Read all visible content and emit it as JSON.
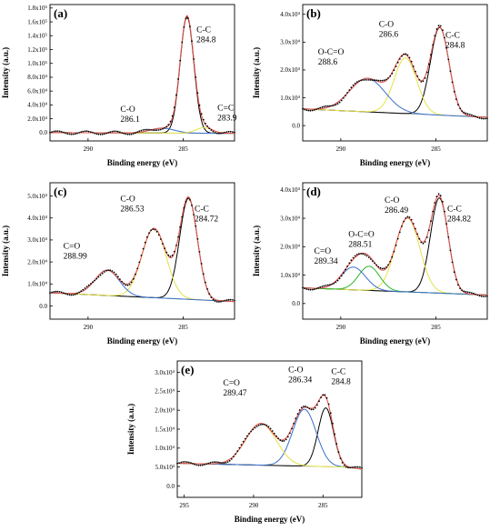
{
  "chart_data": [
    {
      "letter": "(a)",
      "type": "line",
      "xlabel": "Binding energy (eV)",
      "ylabel": "Intensity (a.u.)",
      "xlim": [
        292,
        282.3
      ],
      "ylim": [
        -0.12,
        1.85
      ],
      "x_ticks": [
        290,
        285
      ],
      "y_ticks": [
        "0.0",
        "2.0x10⁴",
        "4.0x10⁴",
        "6.0x10⁴",
        "8.0x10⁴",
        "1.0x10⁵",
        "1.2x10⁵",
        "1.4x10⁵",
        "1.6x10⁵",
        "1.8x10⁵"
      ],
      "y_tick_values": [
        0.0,
        0.2,
        0.4,
        0.6,
        0.8,
        1.0,
        1.2,
        1.4,
        1.6,
        1.8
      ],
      "baseline": [
        [
          292,
          0.0
        ],
        [
          282.3,
          -0.01
        ]
      ],
      "peaks": [
        {
          "name": "C-C",
          "center": 284.8,
          "height": 1.68,
          "fwhm": 0.85,
          "color": "#000000"
        },
        {
          "name": "C-O",
          "center": 286.1,
          "height": 0.07,
          "fwhm": 1.5,
          "color": "#3a6fc9"
        },
        {
          "name": "C=C",
          "center": 283.9,
          "height": 0.08,
          "fwhm": 1.0,
          "color": "#e2e24a"
        }
      ],
      "annotations": [
        {
          "lines": [
            "C-C",
            "284.8"
          ],
          "x": 284.3,
          "y": 1.45,
          "align": "start"
        },
        {
          "lines": [
            "C-O",
            "286.1"
          ],
          "x": 288.3,
          "y": 0.3,
          "align": "start"
        },
        {
          "lines": [
            "C=C",
            "283.9"
          ],
          "x": 283.2,
          "y": 0.32,
          "align": "start"
        }
      ]
    },
    {
      "letter": "(b)",
      "type": "line",
      "xlabel": "Binding energy (eV)",
      "ylabel": "Intensity (a.u.)",
      "xlim": [
        292,
        282.3
      ],
      "ylim": [
        -0.55,
        4.35
      ],
      "x_ticks": [
        290,
        285
      ],
      "y_ticks": [
        "0.0",
        "1.0x10⁴",
        "2.0x10⁴",
        "3.0x10⁴",
        "4.0x10⁴"
      ],
      "y_tick_values": [
        0.0,
        1.0,
        2.0,
        3.0,
        4.0
      ],
      "baseline": [
        [
          292,
          0.6
        ],
        [
          282.3,
          0.3
        ]
      ],
      "peaks": [
        {
          "name": "C-C",
          "center": 284.8,
          "height": 3.15,
          "fwhm": 1.15,
          "color": "#000000"
        },
        {
          "name": "C-O",
          "center": 286.6,
          "height": 2.0,
          "fwhm": 1.4,
          "color": "#e2e24a"
        },
        {
          "name": "O-C=O",
          "center": 288.6,
          "height": 1.2,
          "fwhm": 2.2,
          "color": "#3a6fc9"
        }
      ],
      "annotations": [
        {
          "lines": [
            "C-C",
            "284.8"
          ],
          "x": 284.5,
          "y": 3.15,
          "align": "start"
        },
        {
          "lines": [
            "C-O",
            "286.6"
          ],
          "x": 288.0,
          "y": 3.55,
          "align": "start"
        },
        {
          "lines": [
            "O-C=O",
            "288.6"
          ],
          "x": 291.2,
          "y": 2.55,
          "align": "start"
        }
      ]
    },
    {
      "letter": "(c)",
      "type": "line",
      "xlabel": "Binding energy (eV)",
      "ylabel": "Intensity (a.u.)",
      "xlim": [
        292,
        282.3
      ],
      "ylim": [
        -0.6,
        5.6
      ],
      "x_ticks": [
        290,
        285
      ],
      "y_ticks": [
        "0.0",
        "1.0x10⁴",
        "2.0x10⁴",
        "3.0x10⁴",
        "4.0x10⁴",
        "5.0x10⁴"
      ],
      "y_tick_values": [
        0.0,
        1.0,
        2.0,
        3.0,
        4.0,
        5.0
      ],
      "baseline": [
        [
          292,
          0.6
        ],
        [
          282.3,
          0.2
        ]
      ],
      "peaks": [
        {
          "name": "C-C",
          "center": 284.72,
          "height": 4.6,
          "fwhm": 1.1,
          "color": "#000000"
        },
        {
          "name": "C-O",
          "center": 286.53,
          "height": 3.15,
          "fwhm": 1.5,
          "color": "#e2e24a"
        },
        {
          "name": "C=O",
          "center": 288.99,
          "height": 1.15,
          "fwhm": 1.5,
          "color": "#3a6fc9"
        }
      ],
      "annotations": [
        {
          "lines": [
            "C-C",
            "284.72"
          ],
          "x": 284.4,
          "y": 4.3,
          "align": "start"
        },
        {
          "lines": [
            "C-O",
            "286.53"
          ],
          "x": 288.3,
          "y": 4.75,
          "align": "start"
        },
        {
          "lines": [
            "C=O",
            "288.99"
          ],
          "x": 291.3,
          "y": 2.6,
          "align": "start"
        }
      ]
    },
    {
      "letter": "(d)",
      "type": "line",
      "xlabel": "Binding energy (eV)",
      "ylabel": "Intensity (a.u.)",
      "xlim": [
        292,
        282.3
      ],
      "ylim": [
        -0.55,
        4.25
      ],
      "x_ticks": [
        290,
        285
      ],
      "y_ticks": [
        "0.0",
        "1.0x10⁴",
        "2.0x10⁴",
        "3.0x10⁴",
        "4.0x10⁴"
      ],
      "y_tick_values": [
        0.0,
        1.0,
        2.0,
        3.0,
        4.0
      ],
      "baseline": [
        [
          292,
          0.55
        ],
        [
          282.3,
          0.3
        ]
      ],
      "peaks": [
        {
          "name": "C-C",
          "center": 284.82,
          "height": 3.35,
          "fwhm": 1.1,
          "color": "#000000"
        },
        {
          "name": "C-O",
          "center": 286.49,
          "height": 2.6,
          "fwhm": 1.5,
          "color": "#e2e24a"
        },
        {
          "name": "O-C=O",
          "center": 288.51,
          "height": 0.85,
          "fwhm": 1.3,
          "color": "#2db52d"
        },
        {
          "name": "C=O",
          "center": 289.34,
          "height": 0.8,
          "fwhm": 1.5,
          "color": "#3a6fc9"
        }
      ],
      "annotations": [
        {
          "lines": [
            "C-C",
            "284.82"
          ],
          "x": 284.4,
          "y": 3.25,
          "align": "start"
        },
        {
          "lines": [
            "C-O",
            "286.49"
          ],
          "x": 287.7,
          "y": 3.55,
          "align": "start"
        },
        {
          "lines": [
            "O-C=O",
            "288.51"
          ],
          "x": 289.6,
          "y": 2.35,
          "align": "start"
        },
        {
          "lines": [
            "C=O",
            "289.34"
          ],
          "x": 291.4,
          "y": 1.75,
          "align": "start"
        }
      ]
    },
    {
      "letter": "(e)",
      "type": "line",
      "xlabel": "Binding energy (eV)",
      "ylabel": "Intensity (a.u.)",
      "xlim": [
        295.5,
        282.2
      ],
      "ylim": [
        -0.3,
        3.3
      ],
      "x_ticks": [
        295,
        290,
        285
      ],
      "y_ticks": [
        "0.0",
        "5.0x10³",
        "1.0x10⁴",
        "1.5x10⁴",
        "2.0x10⁴",
        "2.5x10⁴",
        "3.0x10⁴"
      ],
      "y_tick_values": [
        0.0,
        0.5,
        1.0,
        1.5,
        2.0,
        2.5,
        3.0
      ],
      "baseline": [
        [
          295.5,
          0.6
        ],
        [
          283.5,
          0.5
        ],
        [
          282.2,
          0.45
        ]
      ],
      "peaks": [
        {
          "name": "C-C",
          "center": 284.8,
          "height": 1.55,
          "fwhm": 1.3,
          "color": "#000000"
        },
        {
          "name": "C-O",
          "center": 286.34,
          "height": 1.5,
          "fwhm": 2.0,
          "color": "#3a6fc9"
        },
        {
          "name": "C=O",
          "center": 289.47,
          "height": 1.1,
          "fwhm": 2.6,
          "color": "#e2e24a"
        }
      ],
      "annotations": [
        {
          "lines": [
            "C-C",
            "284.8"
          ],
          "x": 284.4,
          "y": 2.95,
          "align": "start"
        },
        {
          "lines": [
            "C-O",
            "286.34"
          ],
          "x": 287.5,
          "y": 3.0,
          "align": "start"
        },
        {
          "lines": [
            "C=O",
            "289.47"
          ],
          "x": 292.2,
          "y": 2.65,
          "align": "start"
        }
      ]
    }
  ],
  "style": {
    "envelope_color": "#e0574f",
    "background_color": "#8a8a8a",
    "data_color": "#000000"
  }
}
